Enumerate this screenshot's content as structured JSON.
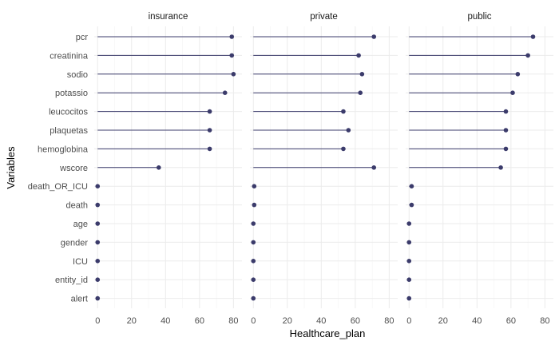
{
  "chart_data": {
    "type": "lollipop",
    "xlabel": "Healthcare_plan",
    "ylabel": "Variables",
    "xlim": [
      -2,
      85
    ],
    "x_ticks": [
      0,
      20,
      40,
      60,
      80
    ],
    "grid": true,
    "legend": "none",
    "colors": {
      "stem": "#3b3b6b",
      "point": "#3b3b6b",
      "grid": "#ebebeb"
    },
    "variables": [
      "pcr",
      "creatinina",
      "sodio",
      "potassio",
      "leucocitos",
      "plaquetas",
      "hemoglobina",
      "wscore",
      "death_OR_ICU",
      "death",
      "age",
      "gender",
      "ICU",
      "entity_id",
      "alert"
    ],
    "panels": [
      {
        "name": "insurance",
        "values": [
          79,
          79,
          80,
          75,
          66,
          66,
          66,
          36,
          0,
          0,
          0,
          0,
          0,
          0,
          0
        ]
      },
      {
        "name": "private",
        "values": [
          71,
          62,
          64,
          63,
          53,
          56,
          53,
          71,
          0.5,
          0.5,
          0,
          0,
          0,
          0,
          0
        ]
      },
      {
        "name": "public",
        "values": [
          73,
          70,
          64,
          61,
          57,
          57,
          57,
          54,
          1.5,
          1.5,
          0,
          0,
          0,
          0,
          0
        ]
      }
    ]
  }
}
